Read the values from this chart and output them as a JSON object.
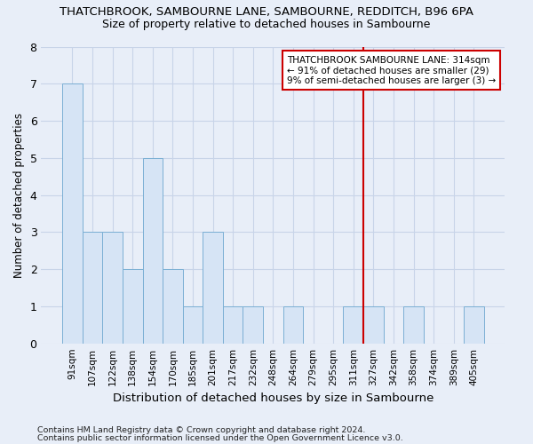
{
  "title": "THATCHBROOK, SAMBOURNE LANE, SAMBOURNE, REDDITCH, B96 6PA",
  "subtitle": "Size of property relative to detached houses in Sambourne",
  "xlabel": "Distribution of detached houses by size in Sambourne",
  "ylabel": "Number of detached properties",
  "categories": [
    "91sqm",
    "107sqm",
    "122sqm",
    "138sqm",
    "154sqm",
    "170sqm",
    "185sqm",
    "201sqm",
    "217sqm",
    "232sqm",
    "248sqm",
    "264sqm",
    "279sqm",
    "295sqm",
    "311sqm",
    "327sqm",
    "342sqm",
    "358sqm",
    "374sqm",
    "389sqm",
    "405sqm"
  ],
  "values": [
    7,
    3,
    3,
    2,
    5,
    2,
    1,
    3,
    1,
    1,
    0,
    1,
    0,
    0,
    1,
    1,
    0,
    1,
    0,
    0,
    1
  ],
  "bar_color": "#d6e4f5",
  "bar_edge_color": "#7bafd4",
  "grid_color": "#c8d4e8",
  "background_color": "#e8eef8",
  "annotation_line1": "THATCHBROOK SAMBOURNE LANE: 314sqm",
  "annotation_line2": "← 91% of detached houses are smaller (29)",
  "annotation_line3": "9% of semi-detached houses are larger (3) →",
  "annotation_box_color": "#ffffff",
  "annotation_box_edge": "#cc0000",
  "vline_color": "#cc0000",
  "vline_x_index": 14,
  "ylim": [
    0,
    8
  ],
  "yticks": [
    0,
    1,
    2,
    3,
    4,
    5,
    6,
    7,
    8
  ],
  "footer1": "Contains HM Land Registry data © Crown copyright and database right 2024.",
  "footer2": "Contains public sector information licensed under the Open Government Licence v3.0."
}
